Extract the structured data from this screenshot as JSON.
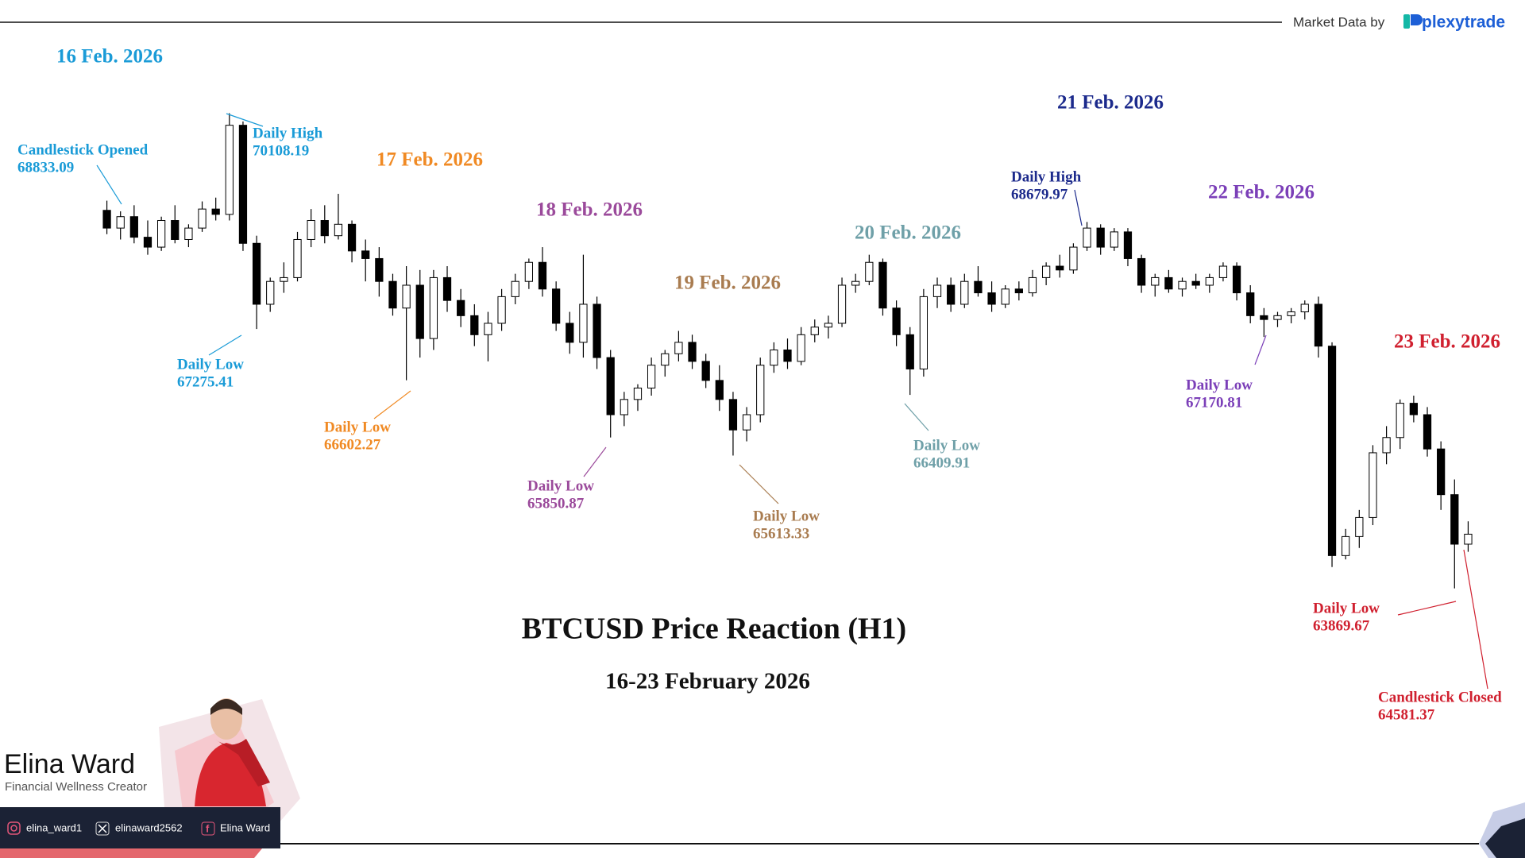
{
  "header": {
    "source_label": "Market Data by",
    "brand": "plexytrade"
  },
  "profile": {
    "name": "Elina Ward",
    "role": "Financial Wellness Creator",
    "instagram": "elina_ward1",
    "x": "elinaward2562",
    "facebook": "Elina Ward"
  },
  "chart_data": {
    "type": "candlestick",
    "title": "BTCUSD Price Reaction (H1)",
    "subtitle": "16-23 February 2026",
    "ylim": [
      63000,
      71000
    ],
    "up_color": "#ffffff",
    "down_color": "#000000",
    "day_labels": [
      {
        "label": "16 Feb. 2026",
        "color": "#1a9bd7"
      },
      {
        "label": "17 Feb. 2026",
        "color": "#f08a24"
      },
      {
        "label": "18 Feb. 2026",
        "color": "#9b4a9b"
      },
      {
        "label": "19 Feb. 2026",
        "color": "#a97c50"
      },
      {
        "label": "20 Feb. 2026",
        "color": "#6fa0a8"
      },
      {
        "label": "21 Feb. 2026",
        "color": "#1c2a8c"
      },
      {
        "label": "22 Feb. 2026",
        "color": "#7b3fb8"
      },
      {
        "label": "23 Feb. 2026",
        "color": "#d0202f"
      }
    ],
    "annotations": [
      {
        "text": "Candlestick Opened",
        "value": 68833.09,
        "color": "#1a9bd7"
      },
      {
        "text": "Daily High",
        "value": 70108.19,
        "color": "#1a9bd7"
      },
      {
        "text": "Daily Low",
        "value": 67275.41,
        "color": "#1a9bd7"
      },
      {
        "text": "Daily Low",
        "value": 66602.27,
        "color": "#f08a24"
      },
      {
        "text": "Daily Low",
        "value": 65850.87,
        "color": "#9b4a9b"
      },
      {
        "text": "Daily Low",
        "value": 65613.33,
        "color": "#a97c50"
      },
      {
        "text": "Daily Low",
        "value": 66409.91,
        "color": "#6fa0a8"
      },
      {
        "text": "Daily High",
        "value": 68679.97,
        "color": "#1c2a8c"
      },
      {
        "text": "Daily Low",
        "value": 67170.81,
        "color": "#7b3fb8"
      },
      {
        "text": "Daily Low",
        "value": 63869.67,
        "color": "#d0202f"
      },
      {
        "text": "Candlestick Closed",
        "value": 64581.37,
        "color": "#d0202f"
      }
    ],
    "ohlc": [
      [
        68833.09,
        68960,
        68520,
        68600
      ],
      [
        68600,
        68820,
        68450,
        68750
      ],
      [
        68750,
        68900,
        68400,
        68480
      ],
      [
        68480,
        68700,
        68250,
        68350
      ],
      [
        68350,
        68750,
        68300,
        68700
      ],
      [
        68700,
        68900,
        68400,
        68450
      ],
      [
        68450,
        68650,
        68350,
        68600
      ],
      [
        68600,
        68950,
        68550,
        68850
      ],
      [
        68850,
        69000,
        68700,
        68780
      ],
      [
        68780,
        70108.19,
        68700,
        69950
      ],
      [
        69950,
        70000,
        68300,
        68400
      ],
      [
        68400,
        68500,
        67275.41,
        67600
      ],
      [
        67600,
        67950,
        67500,
        67900
      ],
      [
        67900,
        68150,
        67750,
        67950
      ],
      [
        67950,
        68550,
        67900,
        68450
      ],
      [
        68450,
        68850,
        68350,
        68700
      ],
      [
        68700,
        68900,
        68400,
        68500
      ],
      [
        68500,
        69050,
        68450,
        68650
      ],
      [
        68650,
        68700,
        68150,
        68300
      ],
      [
        68300,
        68450,
        67900,
        68200
      ],
      [
        68200,
        68350,
        67700,
        67900
      ],
      [
        67900,
        68000,
        67450,
        67550
      ],
      [
        67550,
        68100,
        66602.27,
        67850
      ],
      [
        67850,
        68050,
        66900,
        67150
      ],
      [
        67150,
        68050,
        67000,
        67950
      ],
      [
        67950,
        68100,
        67500,
        67650
      ],
      [
        67650,
        67800,
        67300,
        67450
      ],
      [
        67450,
        67600,
        67050,
        67200
      ],
      [
        67200,
        67500,
        66850,
        67350
      ],
      [
        67350,
        67800,
        67250,
        67700
      ],
      [
        67700,
        68000,
        67600,
        67900
      ],
      [
        67900,
        68200,
        67800,
        68150
      ],
      [
        68150,
        68350,
        67700,
        67800
      ],
      [
        67800,
        67900,
        67250,
        67350
      ],
      [
        67350,
        67500,
        66950,
        67100
      ],
      [
        67100,
        68250,
        66900,
        67600
      ],
      [
        67600,
        67700,
        66750,
        66900
      ],
      [
        66900,
        67000,
        65850.87,
        66150
      ],
      [
        66150,
        66450,
        66000,
        66350
      ],
      [
        66350,
        66550,
        66200,
        66500
      ],
      [
        66500,
        66900,
        66400,
        66800
      ],
      [
        66800,
        67000,
        66650,
        66950
      ],
      [
        66950,
        67250,
        66850,
        67100
      ],
      [
        67100,
        67200,
        66750,
        66850
      ],
      [
        66850,
        66950,
        66500,
        66600
      ],
      [
        66600,
        66800,
        66200,
        66350
      ],
      [
        66350,
        66450,
        65613.33,
        65950
      ],
      [
        65950,
        66250,
        65800,
        66150
      ],
      [
        66150,
        66900,
        66050,
        66800
      ],
      [
        66800,
        67100,
        66700,
        67000
      ],
      [
        67000,
        67150,
        66750,
        66850
      ],
      [
        66850,
        67300,
        66800,
        67200
      ],
      [
        67200,
        67400,
        67100,
        67300
      ],
      [
        67300,
        67450,
        67150,
        67350
      ],
      [
        67350,
        67950,
        67300,
        67850
      ],
      [
        67850,
        68000,
        67750,
        67900
      ],
      [
        67900,
        68250,
        67850,
        68150
      ],
      [
        68150,
        68200,
        67450,
        67550
      ],
      [
        67550,
        67650,
        67050,
        67200
      ],
      [
        67200,
        67300,
        66409.91,
        66750
      ],
      [
        66750,
        67800,
        66650,
        67700
      ],
      [
        67700,
        67950,
        67550,
        67850
      ],
      [
        67850,
        67950,
        67500,
        67600
      ],
      [
        67600,
        68000,
        67550,
        67900
      ],
      [
        67900,
        68100,
        67700,
        67750
      ],
      [
        67750,
        67900,
        67500,
        67600
      ],
      [
        67600,
        67850,
        67550,
        67800
      ],
      [
        67800,
        67900,
        67650,
        67750
      ],
      [
        67750,
        68050,
        67700,
        67950
      ],
      [
        67950,
        68150,
        67850,
        68100
      ],
      [
        68100,
        68250,
        67950,
        68050
      ],
      [
        68050,
        68400,
        68000,
        68350
      ],
      [
        68350,
        68679.97,
        68300,
        68600
      ],
      [
        68600,
        68650,
        68250,
        68350
      ],
      [
        68350,
        68600,
        68300,
        68550
      ],
      [
        68550,
        68600,
        68100,
        68200
      ],
      [
        68200,
        68250,
        67750,
        67850
      ],
      [
        67850,
        68000,
        67700,
        67950
      ],
      [
        67950,
        68050,
        67750,
        67800
      ],
      [
        67800,
        67950,
        67700,
        67900
      ],
      [
        67900,
        68000,
        67800,
        67850
      ],
      [
        67850,
        68000,
        67750,
        67950
      ],
      [
        67950,
        68150,
        67900,
        68100
      ],
      [
        68100,
        68150,
        67650,
        67750
      ],
      [
        67750,
        67850,
        67350,
        67450
      ],
      [
        67450,
        67550,
        67170.81,
        67400
      ],
      [
        67400,
        67500,
        67300,
        67450
      ],
      [
        67450,
        67550,
        67350,
        67500
      ],
      [
        67500,
        67650,
        67400,
        67600
      ],
      [
        67600,
        67700,
        66900,
        67050
      ],
      [
        67050,
        67100,
        64150,
        64300
      ],
      [
        64300,
        64650,
        64250,
        64550
      ],
      [
        64550,
        64900,
        64400,
        64800
      ],
      [
        64800,
        65750,
        64700,
        65650
      ],
      [
        65650,
        66000,
        65500,
        65850
      ],
      [
        65850,
        66350,
        65700,
        66300
      ],
      [
        66300,
        66400,
        66050,
        66150
      ],
      [
        66150,
        66250,
        65600,
        65700
      ],
      [
        65700,
        65800,
        64900,
        65100
      ],
      [
        65100,
        65300,
        63869.67,
        64450
      ],
      [
        64450,
        64750,
        64350,
        64581.37
      ]
    ]
  }
}
